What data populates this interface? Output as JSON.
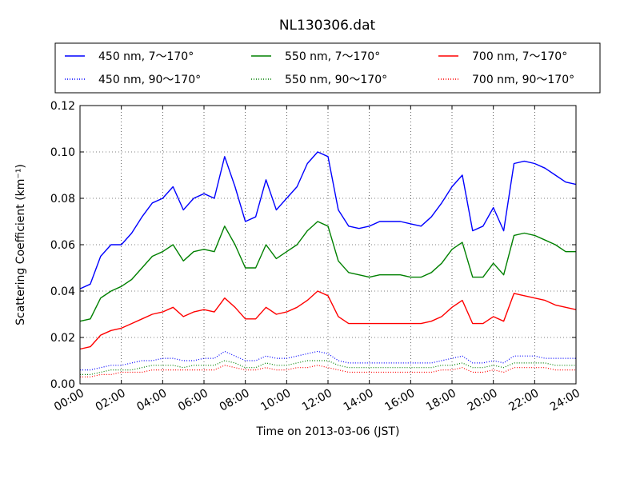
{
  "chart_data": {
    "type": "line",
    "title": "NL130306.dat",
    "xlabel": "Time on 2013-03-06 (JST)",
    "ylabel": "Scattering Coefficient (km⁻¹)",
    "xlim": [
      "00:00",
      "24:00"
    ],
    "ylim": [
      0,
      0.12
    ],
    "grid": true,
    "legend_position": "top",
    "x_ticks": [
      "00:00",
      "02:00",
      "04:00",
      "06:00",
      "08:00",
      "10:00",
      "12:00",
      "14:00",
      "16:00",
      "18:00",
      "20:00",
      "22:00",
      "24:00"
    ],
    "y_ticks": [
      "0.00",
      "0.02",
      "0.04",
      "0.06",
      "0.08",
      "0.10",
      "0.12"
    ],
    "x": [
      "00:00",
      "00:30",
      "01:00",
      "01:30",
      "02:00",
      "02:30",
      "03:00",
      "03:30",
      "04:00",
      "04:30",
      "05:00",
      "05:30",
      "06:00",
      "06:30",
      "07:00",
      "07:30",
      "08:00",
      "08:30",
      "09:00",
      "09:30",
      "10:00",
      "10:30",
      "11:00",
      "11:30",
      "12:00",
      "12:30",
      "13:00",
      "13:30",
      "14:00",
      "14:30",
      "15:00",
      "15:30",
      "16:00",
      "16:30",
      "17:00",
      "17:30",
      "18:00",
      "18:30",
      "19:00",
      "19:30",
      "20:00",
      "20:30",
      "21:00",
      "21:30",
      "22:00",
      "22:30",
      "23:00",
      "23:30",
      "24:00"
    ],
    "series": [
      {
        "name": "450 nm, 7～170°",
        "color": "#0000ff",
        "style": "solid",
        "values": [
          0.041,
          0.043,
          0.055,
          0.06,
          0.06,
          0.065,
          0.072,
          0.078,
          0.08,
          0.085,
          0.075,
          0.08,
          0.082,
          0.08,
          0.098,
          0.085,
          0.07,
          0.072,
          0.088,
          0.075,
          0.08,
          0.085,
          0.095,
          0.1,
          0.098,
          0.075,
          0.068,
          0.067,
          0.068,
          0.07,
          0.07,
          0.07,
          0.069,
          0.068,
          0.072,
          0.078,
          0.085,
          0.09,
          0.066,
          0.068,
          0.076,
          0.066,
          0.095,
          0.096,
          0.095,
          0.093,
          0.09,
          0.087,
          0.086
        ]
      },
      {
        "name": "550 nm, 7～170°",
        "color": "#008000",
        "style": "solid",
        "values": [
          0.027,
          0.028,
          0.037,
          0.04,
          0.042,
          0.045,
          0.05,
          0.055,
          0.057,
          0.06,
          0.053,
          0.057,
          0.058,
          0.057,
          0.068,
          0.06,
          0.05,
          0.05,
          0.06,
          0.054,
          0.057,
          0.06,
          0.066,
          0.07,
          0.068,
          0.053,
          0.048,
          0.047,
          0.046,
          0.047,
          0.047,
          0.047,
          0.046,
          0.046,
          0.048,
          0.052,
          0.058,
          0.061,
          0.046,
          0.046,
          0.052,
          0.047,
          0.064,
          0.065,
          0.064,
          0.062,
          0.06,
          0.057,
          0.057
        ]
      },
      {
        "name": "700 nm, 7～170°",
        "color": "#ff0000",
        "style": "solid",
        "values": [
          0.015,
          0.016,
          0.021,
          0.023,
          0.024,
          0.026,
          0.028,
          0.03,
          0.031,
          0.033,
          0.029,
          0.031,
          0.032,
          0.031,
          0.037,
          0.033,
          0.028,
          0.028,
          0.033,
          0.03,
          0.031,
          0.033,
          0.036,
          0.04,
          0.038,
          0.029,
          0.026,
          0.026,
          0.026,
          0.026,
          0.026,
          0.026,
          0.026,
          0.026,
          0.027,
          0.029,
          0.033,
          0.036,
          0.026,
          0.026,
          0.029,
          0.027,
          0.039,
          0.038,
          0.037,
          0.036,
          0.034,
          0.033,
          0.032
        ]
      },
      {
        "name": "450 nm, 90～170°",
        "color": "#0000ff",
        "style": "dotted",
        "values": [
          0.006,
          0.006,
          0.007,
          0.008,
          0.008,
          0.009,
          0.01,
          0.01,
          0.011,
          0.011,
          0.01,
          0.01,
          0.011,
          0.011,
          0.014,
          0.012,
          0.01,
          0.01,
          0.012,
          0.011,
          0.011,
          0.012,
          0.013,
          0.014,
          0.013,
          0.01,
          0.009,
          0.009,
          0.009,
          0.009,
          0.009,
          0.009,
          0.009,
          0.009,
          0.009,
          0.01,
          0.011,
          0.012,
          0.009,
          0.009,
          0.01,
          0.009,
          0.012,
          0.012,
          0.012,
          0.011,
          0.011,
          0.011,
          0.011
        ]
      },
      {
        "name": "550 nm, 90～170°",
        "color": "#008000",
        "style": "dotted",
        "values": [
          0.004,
          0.004,
          0.005,
          0.006,
          0.006,
          0.006,
          0.007,
          0.008,
          0.008,
          0.008,
          0.007,
          0.008,
          0.008,
          0.008,
          0.01,
          0.009,
          0.007,
          0.007,
          0.009,
          0.008,
          0.008,
          0.009,
          0.01,
          0.01,
          0.01,
          0.008,
          0.007,
          0.007,
          0.007,
          0.007,
          0.007,
          0.007,
          0.007,
          0.007,
          0.007,
          0.008,
          0.008,
          0.009,
          0.007,
          0.007,
          0.008,
          0.007,
          0.009,
          0.009,
          0.009,
          0.009,
          0.008,
          0.008,
          0.008
        ]
      },
      {
        "name": "700 nm, 90～170°",
        "color": "#ff0000",
        "style": "dotted",
        "values": [
          0.003,
          0.003,
          0.004,
          0.004,
          0.005,
          0.005,
          0.005,
          0.006,
          0.006,
          0.006,
          0.006,
          0.006,
          0.006,
          0.006,
          0.008,
          0.007,
          0.006,
          0.006,
          0.007,
          0.006,
          0.006,
          0.007,
          0.007,
          0.008,
          0.007,
          0.006,
          0.005,
          0.005,
          0.005,
          0.005,
          0.005,
          0.005,
          0.005,
          0.005,
          0.005,
          0.006,
          0.006,
          0.007,
          0.005,
          0.005,
          0.006,
          0.005,
          0.007,
          0.007,
          0.007,
          0.007,
          0.006,
          0.006,
          0.006
        ]
      }
    ]
  }
}
